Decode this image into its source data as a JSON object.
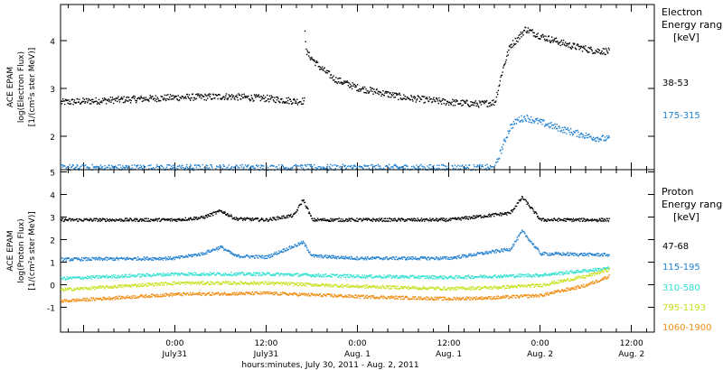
{
  "chart_data": [
    {
      "type": "scatter",
      "instrument": "ACE EPAM",
      "ylabel": "log(Electron Flux)",
      "yunits": "[1/(cm²s ster MeV)]",
      "ylim": [
        1.3,
        4.75
      ],
      "yticks": [
        2,
        3,
        4
      ],
      "legend_title": [
        "Electron",
        "Energy range"
      ],
      "legend_units": "[keV]",
      "series": [
        {
          "name": "38-53",
          "color": "#000000",
          "profile": [
            [
              -0.625,
              2.72
            ],
            [
              0.0,
              2.82
            ],
            [
              0.29,
              2.84
            ],
            [
              0.5,
              2.8
            ],
            [
              0.667,
              2.74
            ],
            [
              0.708,
              2.75
            ],
            [
              0.709,
              4.2
            ],
            [
              0.72,
              3.75
            ],
            [
              0.792,
              3.45
            ],
            [
              0.875,
              3.2
            ],
            [
              1.0,
              3.02
            ],
            [
              1.25,
              2.82
            ],
            [
              1.5,
              2.72
            ],
            [
              1.667,
              2.68
            ],
            [
              1.75,
              2.72
            ],
            [
              1.792,
              3.4
            ],
            [
              1.833,
              3.9
            ],
            [
              1.875,
              4.05
            ],
            [
              1.917,
              4.25
            ],
            [
              2.0,
              4.1
            ],
            [
              2.167,
              3.9
            ],
            [
              2.292,
              3.8
            ],
            [
              2.375,
              3.78
            ]
          ]
        },
        {
          "name": "175-315",
          "color": "#1f7fd0",
          "profile": [
            [
              -0.625,
              1.35
            ],
            [
              0.0,
              1.35
            ],
            [
              0.5,
              1.35
            ],
            [
              1.0,
              1.35
            ],
            [
              1.5,
              1.35
            ],
            [
              1.75,
              1.35
            ],
            [
              1.792,
              1.8
            ],
            [
              1.833,
              2.2
            ],
            [
              1.875,
              2.35
            ],
            [
              1.917,
              2.4
            ],
            [
              2.0,
              2.3
            ],
            [
              2.167,
              2.1
            ],
            [
              2.292,
              1.98
            ],
            [
              2.375,
              1.95
            ]
          ]
        }
      ]
    },
    {
      "type": "scatter",
      "instrument": "ACE EPAM",
      "ylabel": "log(Proton Flux)",
      "yunits": "[1/(cm²s ster MeV)]",
      "ylim": [
        -2.1,
        5.1
      ],
      "yticks": [
        -1,
        0,
        1,
        2,
        3,
        4,
        5
      ],
      "legend_title": [
        "Proton",
        "Energy range"
      ],
      "legend_units": "[keV]",
      "series": [
        {
          "name": "47-68",
          "color": "#000000",
          "profile": [
            [
              -0.625,
              2.9
            ],
            [
              0.0,
              2.9
            ],
            [
              0.15,
              3.0
            ],
            [
              0.25,
              3.3
            ],
            [
              0.33,
              2.95
            ],
            [
              0.5,
              2.9
            ],
            [
              0.65,
              3.1
            ],
            [
              0.7,
              3.8
            ],
            [
              0.75,
              2.9
            ],
            [
              1.0,
              2.9
            ],
            [
              1.5,
              2.9
            ],
            [
              1.833,
              3.2
            ],
            [
              1.9,
              3.9
            ],
            [
              2.0,
              2.9
            ],
            [
              2.375,
              2.9
            ]
          ]
        },
        {
          "name": "115-195",
          "color": "#1f7fd0",
          "profile": [
            [
              -0.625,
              1.15
            ],
            [
              0.0,
              1.2
            ],
            [
              0.15,
              1.4
            ],
            [
              0.25,
              1.7
            ],
            [
              0.33,
              1.3
            ],
            [
              0.5,
              1.25
            ],
            [
              0.7,
              1.9
            ],
            [
              0.75,
              1.3
            ],
            [
              1.0,
              1.2
            ],
            [
              1.5,
              1.2
            ],
            [
              1.833,
              1.6
            ],
            [
              1.9,
              2.4
            ],
            [
              2.0,
              1.4
            ],
            [
              2.375,
              1.35
            ]
          ]
        },
        {
          "name": "310-580",
          "color": "#30e0d0",
          "profile": [
            [
              -0.625,
              0.3
            ],
            [
              0.0,
              0.5
            ],
            [
              0.5,
              0.5
            ],
            [
              1.0,
              0.4
            ],
            [
              1.5,
              0.35
            ],
            [
              1.75,
              0.4
            ],
            [
              2.0,
              0.45
            ],
            [
              2.25,
              0.65
            ],
            [
              2.375,
              0.75
            ]
          ]
        },
        {
          "name": "795-1193",
          "color": "#c8e020",
          "profile": [
            [
              -0.625,
              -0.2
            ],
            [
              0.0,
              0.1
            ],
            [
              0.5,
              0.1
            ],
            [
              1.0,
              -0.05
            ],
            [
              1.5,
              -0.15
            ],
            [
              1.75,
              -0.1
            ],
            [
              2.0,
              0.0
            ],
            [
              2.25,
              0.4
            ],
            [
              2.375,
              0.7
            ]
          ]
        },
        {
          "name": "1060-1900",
          "color": "#f08c10",
          "profile": [
            [
              -0.625,
              -0.7
            ],
            [
              0.0,
              -0.4
            ],
            [
              0.5,
              -0.35
            ],
            [
              1.0,
              -0.5
            ],
            [
              1.5,
              -0.6
            ],
            [
              1.75,
              -0.55
            ],
            [
              2.0,
              -0.45
            ],
            [
              2.25,
              0.0
            ],
            [
              2.375,
              0.4
            ]
          ]
        }
      ]
    }
  ],
  "xaxis": {
    "xlim": [
      -0.625,
      2.625
    ],
    "xticks": [
      0.0,
      0.5,
      1.0,
      1.5,
      2.0,
      2.5
    ],
    "ticks": [
      {
        "time": "0:00",
        "date": "July31"
      },
      {
        "time": "12:00",
        "date": "July31"
      },
      {
        "time": "0:00",
        "date": "Aug. 1"
      },
      {
        "time": "12:00",
        "date": "Aug. 1"
      },
      {
        "time": "0:00",
        "date": "Aug. 2"
      },
      {
        "time": "12:00",
        "date": "Aug. 2"
      }
    ],
    "label": "hours:minutes, July 30, 2011 - Aug.  2, 2011"
  }
}
